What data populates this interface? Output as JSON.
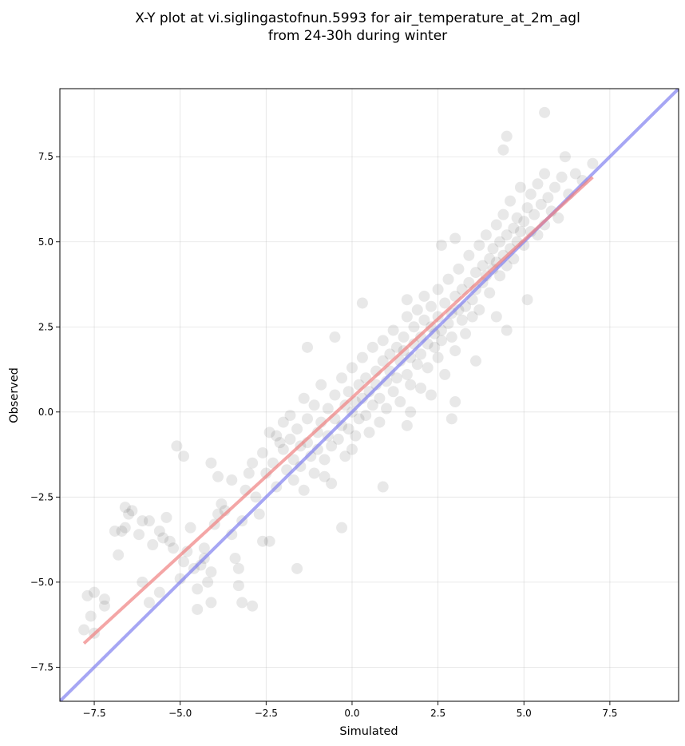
{
  "chart_data": {
    "type": "scatter",
    "title": "X-Y plot at vi.siglingastofnun.5993 for air_temperature_at_2m_agl",
    "subtitle": "from 24-30h during winter",
    "xlabel": "Simulated",
    "ylabel": "Observed",
    "xlim": [
      -8.5,
      9.5
    ],
    "ylim": [
      -8.5,
      9.5
    ],
    "xticks": [
      -7.5,
      -5.0,
      -2.5,
      0.0,
      2.5,
      5.0,
      7.5
    ],
    "yticks": [
      -7.5,
      -5.0,
      -2.5,
      0.0,
      2.5,
      5.0,
      7.5
    ],
    "xtick_labels": [
      "−7.5",
      "−5.0",
      "−2.5",
      "0.0",
      "2.5",
      "5.0",
      "7.5"
    ],
    "ytick_labels": [
      "−7.5",
      "−5.0",
      "−2.5",
      "0.0",
      "2.5",
      "5.0",
      "7.5"
    ],
    "grid": true,
    "point_color": "#000000",
    "point_opacity": 0.09,
    "regression_line": {
      "color": "#f08080",
      "x": [
        -7.8,
        7.0
      ],
      "y": [
        -6.8,
        6.9
      ]
    },
    "identity_line": {
      "color": "#8080f0",
      "x": [
        -8.5,
        9.5
      ],
      "y": [
        -8.5,
        9.5
      ]
    },
    "points": [
      [
        -7.8,
        -6.4
      ],
      [
        -7.7,
        -5.4
      ],
      [
        -7.6,
        -6.0
      ],
      [
        -7.5,
        -5.3
      ],
      [
        -7.5,
        -6.5
      ],
      [
        -7.2,
        -5.5
      ],
      [
        -7.2,
        -5.7
      ],
      [
        -6.9,
        -3.5
      ],
      [
        -6.8,
        -4.2
      ],
      [
        -6.7,
        -3.5
      ],
      [
        -6.6,
        -2.8
      ],
      [
        -6.5,
        -3.0
      ],
      [
        -6.4,
        -2.9
      ],
      [
        -6.2,
        -3.6
      ],
      [
        -6.1,
        -3.2
      ],
      [
        -6.1,
        -5.0
      ],
      [
        -5.9,
        -5.6
      ],
      [
        -5.8,
        -3.9
      ],
      [
        -5.6,
        -3.5
      ],
      [
        -5.6,
        -5.3
      ],
      [
        -5.5,
        -3.7
      ],
      [
        -5.4,
        -3.1
      ],
      [
        -5.3,
        -3.8
      ],
      [
        -5.2,
        -4.0
      ],
      [
        -5.0,
        -4.9
      ],
      [
        -4.9,
        -4.4
      ],
      [
        -4.8,
        -4.1
      ],
      [
        -4.7,
        -3.4
      ],
      [
        -4.6,
        -4.6
      ],
      [
        -4.5,
        -5.2
      ],
      [
        -4.4,
        -4.5
      ],
      [
        -4.3,
        -4.3
      ],
      [
        -4.3,
        -4.0
      ],
      [
        -4.2,
        -5.0
      ],
      [
        -4.1,
        -4.7
      ],
      [
        -4.0,
        -3.3
      ],
      [
        -3.9,
        -3.0
      ],
      [
        -3.8,
        -2.7
      ],
      [
        -3.7,
        -2.9
      ],
      [
        -3.5,
        -3.6
      ],
      [
        -3.4,
        -4.3
      ],
      [
        -3.3,
        -4.6
      ],
      [
        -3.2,
        -3.2
      ],
      [
        -3.1,
        -2.3
      ],
      [
        -3.0,
        -1.8
      ],
      [
        -2.9,
        -1.5
      ],
      [
        -2.8,
        -2.5
      ],
      [
        -2.7,
        -3.0
      ],
      [
        -2.6,
        -1.2
      ],
      [
        -2.5,
        -1.8
      ],
      [
        -2.4,
        -0.6
      ],
      [
        -2.3,
        -1.5
      ],
      [
        -2.2,
        -2.2
      ],
      [
        -2.1,
        -0.9
      ],
      [
        -2.0,
        -0.3
      ],
      [
        -2.0,
        -1.1
      ],
      [
        -1.9,
        -1.7
      ],
      [
        -1.8,
        -0.1
      ],
      [
        -1.8,
        -0.8
      ],
      [
        -1.7,
        -1.4
      ],
      [
        -1.7,
        -2.0
      ],
      [
        -1.6,
        -0.5
      ],
      [
        -1.5,
        -1.0
      ],
      [
        -1.5,
        -1.6
      ],
      [
        -1.4,
        0.4
      ],
      [
        -1.4,
        -2.3
      ],
      [
        -1.3,
        -0.2
      ],
      [
        -1.3,
        -0.9
      ],
      [
        -1.2,
        -1.3
      ],
      [
        -1.1,
        0.2
      ],
      [
        -1.1,
        -1.8
      ],
      [
        -1.0,
        -0.6
      ],
      [
        -1.0,
        -1.1
      ],
      [
        -0.9,
        0.8
      ],
      [
        -0.9,
        -0.3
      ],
      [
        -0.8,
        -1.4
      ],
      [
        -0.7,
        0.1
      ],
      [
        -0.7,
        -0.7
      ],
      [
        -0.6,
        -1.0
      ],
      [
        -0.6,
        -2.1
      ],
      [
        -0.5,
        0.5
      ],
      [
        -0.5,
        -0.2
      ],
      [
        -0.4,
        -0.8
      ],
      [
        -0.3,
        1.0
      ],
      [
        -0.3,
        -0.4
      ],
      [
        -0.2,
        0.2
      ],
      [
        -0.2,
        -1.3
      ],
      [
        -0.1,
        0.6
      ],
      [
        -0.1,
        -0.5
      ],
      [
        0.0,
        0.0
      ],
      [
        0.0,
        1.3
      ],
      [
        0.1,
        0.3
      ],
      [
        0.1,
        -0.7
      ],
      [
        0.2,
        0.8
      ],
      [
        0.2,
        -0.2
      ],
      [
        0.3,
        1.6
      ],
      [
        0.3,
        0.4
      ],
      [
        0.4,
        -0.1
      ],
      [
        0.4,
        1.0
      ],
      [
        0.5,
        0.6
      ],
      [
        0.5,
        -0.6
      ],
      [
        0.6,
        1.9
      ],
      [
        0.6,
        0.2
      ],
      [
        0.7,
        1.2
      ],
      [
        0.7,
        0.8
      ],
      [
        0.8,
        0.4
      ],
      [
        0.8,
        -0.3
      ],
      [
        0.9,
        1.5
      ],
      [
        0.9,
        2.1
      ],
      [
        1.0,
        0.9
      ],
      [
        1.0,
        0.1
      ],
      [
        1.1,
        1.7
      ],
      [
        1.1,
        1.2
      ],
      [
        1.2,
        0.6
      ],
      [
        1.2,
        2.4
      ],
      [
        1.3,
        1.9
      ],
      [
        1.3,
        1.0
      ],
      [
        1.4,
        0.3
      ],
      [
        1.4,
        1.5
      ],
      [
        1.5,
        2.2
      ],
      [
        1.5,
        1.8
      ],
      [
        1.6,
        1.1
      ],
      [
        1.6,
        2.8
      ],
      [
        1.7,
        1.6
      ],
      [
        1.7,
        0.8
      ],
      [
        1.8,
        2.5
      ],
      [
        1.8,
        2.0
      ],
      [
        1.9,
        1.4
      ],
      [
        1.9,
        3.0
      ],
      [
        2.0,
        2.2
      ],
      [
        2.0,
        1.7
      ],
      [
        2.0,
        0.7
      ],
      [
        2.1,
        2.7
      ],
      [
        2.1,
        3.4
      ],
      [
        2.2,
        2.0
      ],
      [
        2.2,
        1.3
      ],
      [
        2.3,
        2.5
      ],
      [
        2.3,
        3.1
      ],
      [
        2.4,
        1.9
      ],
      [
        2.4,
        2.3
      ],
      [
        2.5,
        2.8
      ],
      [
        2.5,
        1.6
      ],
      [
        2.5,
        3.6
      ],
      [
        2.6,
        2.4
      ],
      [
        2.6,
        2.1
      ],
      [
        2.7,
        3.2
      ],
      [
        2.7,
        1.1
      ],
      [
        2.8,
        2.6
      ],
      [
        2.8,
        3.9
      ],
      [
        2.9,
        2.9
      ],
      [
        2.9,
        2.2
      ],
      [
        3.0,
        3.4
      ],
      [
        3.0,
        1.8
      ],
      [
        3.1,
        3.0
      ],
      [
        3.1,
        4.2
      ],
      [
        3.2,
        2.7
      ],
      [
        3.2,
        3.6
      ],
      [
        3.3,
        3.1
      ],
      [
        3.3,
        2.3
      ],
      [
        3.4,
        3.8
      ],
      [
        3.4,
        4.6
      ],
      [
        3.5,
        3.3
      ],
      [
        3.5,
        2.8
      ],
      [
        3.6,
        4.1
      ],
      [
        3.6,
        3.6
      ],
      [
        3.7,
        4.9
      ],
      [
        3.7,
        3.0
      ],
      [
        3.8,
        4.3
      ],
      [
        3.8,
        3.8
      ],
      [
        3.9,
        5.2
      ],
      [
        3.9,
        4.0
      ],
      [
        4.0,
        4.5
      ],
      [
        4.0,
        3.5
      ],
      [
        4.1,
        4.8
      ],
      [
        4.1,
        4.2
      ],
      [
        4.2,
        5.5
      ],
      [
        4.2,
        4.4
      ],
      [
        4.3,
        4.0
      ],
      [
        4.3,
        5.0
      ],
      [
        4.4,
        4.6
      ],
      [
        4.4,
        5.8
      ],
      [
        4.5,
        4.3
      ],
      [
        4.5,
        5.2
      ],
      [
        4.6,
        4.8
      ],
      [
        4.6,
        6.2
      ],
      [
        4.7,
        5.4
      ],
      [
        4.7,
        4.5
      ],
      [
        4.8,
        5.0
      ],
      [
        4.8,
        5.7
      ],
      [
        4.9,
        5.3
      ],
      [
        4.9,
        6.6
      ],
      [
        5.0,
        5.6
      ],
      [
        5.0,
        4.9
      ],
      [
        5.1,
        6.0
      ],
      [
        5.2,
        5.3
      ],
      [
        5.2,
        6.4
      ],
      [
        5.3,
        5.8
      ],
      [
        5.4,
        5.2
      ],
      [
        5.4,
        6.7
      ],
      [
        5.5,
        6.1
      ],
      [
        5.6,
        5.5
      ],
      [
        5.6,
        7.0
      ],
      [
        5.7,
        6.3
      ],
      [
        5.8,
        5.9
      ],
      [
        5.9,
        6.6
      ],
      [
        6.0,
        5.7
      ],
      [
        6.1,
        6.9
      ],
      [
        6.2,
        7.5
      ],
      [
        6.3,
        6.4
      ],
      [
        6.5,
        7.0
      ],
      [
        6.7,
        6.8
      ],
      [
        7.0,
        7.3
      ],
      [
        4.4,
        7.7
      ],
      [
        4.5,
        8.1
      ],
      [
        5.6,
        8.8
      ],
      [
        1.6,
        3.3
      ],
      [
        0.3,
        3.2
      ],
      [
        -0.5,
        2.2
      ],
      [
        -1.3,
        1.9
      ],
      [
        -2.2,
        -0.7
      ],
      [
        -5.1,
        -1.0
      ],
      [
        -4.9,
        -1.3
      ],
      [
        -3.3,
        -5.1
      ],
      [
        -3.2,
        -5.6
      ],
      [
        -2.9,
        -5.7
      ],
      [
        -4.1,
        -5.6
      ],
      [
        -4.5,
        -5.8
      ],
      [
        -5.9,
        -3.2
      ],
      [
        -6.6,
        -3.4
      ],
      [
        -0.3,
        -3.4
      ],
      [
        1.6,
        -0.4
      ],
      [
        2.9,
        -0.2
      ],
      [
        1.7,
        0.0
      ],
      [
        3.0,
        0.3
      ],
      [
        4.2,
        2.8
      ],
      [
        4.5,
        2.4
      ],
      [
        5.1,
        3.3
      ],
      [
        2.6,
        4.9
      ],
      [
        3.0,
        5.1
      ],
      [
        0.9,
        -2.2
      ],
      [
        -0.8,
        -1.9
      ],
      [
        -1.6,
        -4.6
      ],
      [
        -2.4,
        -3.8
      ],
      [
        -2.6,
        -3.8
      ],
      [
        -3.5,
        -2.0
      ],
      [
        -3.9,
        -1.9
      ],
      [
        -4.1,
        -1.5
      ],
      [
        0.0,
        -1.1
      ],
      [
        2.3,
        0.5
      ],
      [
        3.6,
        1.5
      ]
    ]
  }
}
